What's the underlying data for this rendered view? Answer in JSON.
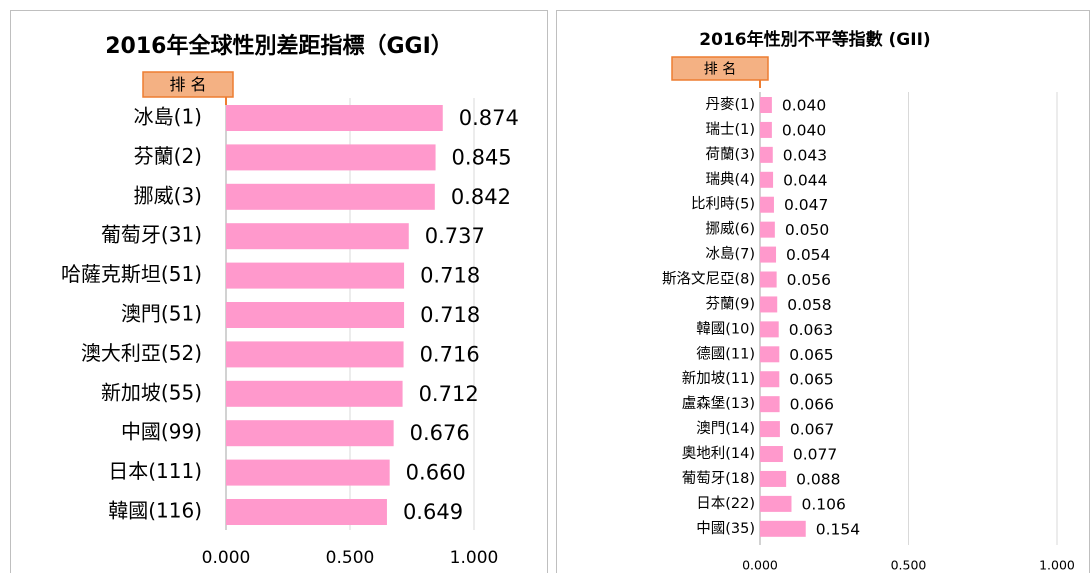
{
  "chart_data": [
    {
      "type": "bar",
      "title": "2016年全球性別差距指標（GGI）",
      "annotation": "排 名",
      "categories": [
        "冰島(1)",
        "芬蘭(2)",
        "挪威(3)",
        "葡萄牙(31)",
        "哈薩克斯坦(51)",
        "澳門(51)",
        "澳大利亞(52)",
        "新加坡(55)",
        "中國(99)",
        "日本(111)",
        "韓國(116)"
      ],
      "values": [
        0.874,
        0.845,
        0.842,
        0.737,
        0.718,
        0.718,
        0.716,
        0.712,
        0.676,
        0.66,
        0.649
      ],
      "value_labels": [
        "0.874",
        "0.845",
        "0.842",
        "0.737",
        "0.718",
        "0.718",
        "0.716",
        "0.712",
        "0.676",
        "0.660",
        "0.649"
      ],
      "color": "#ff99cc",
      "xlim": [
        0,
        1
      ],
      "xticks": [
        {
          "value": 0,
          "label": "0.000"
        },
        {
          "value": 0.5,
          "label": "0.500"
        },
        {
          "value": 1,
          "label": "1.000"
        }
      ],
      "grid": true
    },
    {
      "type": "bar",
      "title": "2016年性別不平等指數 (GII)",
      "annotation": "排 名",
      "categories": [
        "丹麥(1)",
        "瑞士(1)",
        "荷蘭(3)",
        "瑞典(4)",
        "比利時(5)",
        "挪威(6)",
        "冰島(7)",
        "斯洛文尼亞(8)",
        "芬蘭(9)",
        "韓國(10)",
        "德國(11)",
        "新加坡(11)",
        "盧森堡(13)",
        "澳門(14)",
        "奧地利(14)",
        "葡萄牙(18)",
        "日本(22)",
        "中國(35)"
      ],
      "values": [
        0.04,
        0.04,
        0.043,
        0.044,
        0.047,
        0.05,
        0.054,
        0.056,
        0.058,
        0.063,
        0.065,
        0.065,
        0.066,
        0.067,
        0.077,
        0.088,
        0.106,
        0.154
      ],
      "value_labels": [
        "0.040",
        "0.040",
        "0.043",
        "0.044",
        "0.047",
        "0.050",
        "0.054",
        "0.056",
        "0.058",
        "0.063",
        "0.065",
        "0.065",
        "0.066",
        "0.067",
        "0.077",
        "0.088",
        "0.106",
        "0.154"
      ],
      "color": "#ff99cc",
      "xlim": [
        0,
        1
      ],
      "xticks": [
        {
          "value": 0,
          "label": "0.000"
        },
        {
          "value": 0.5,
          "label": "0.500"
        },
        {
          "value": 1,
          "label": "1.000"
        }
      ],
      "grid": true
    }
  ]
}
